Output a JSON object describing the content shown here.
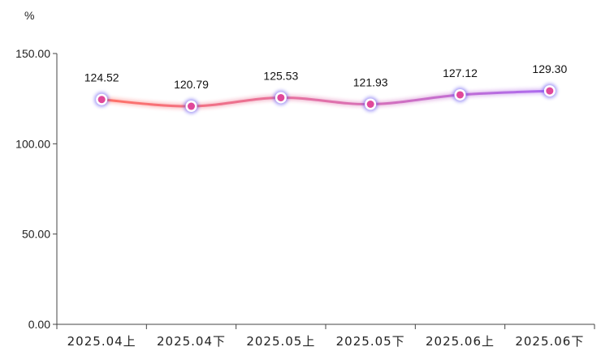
{
  "chart_data": {
    "type": "line",
    "ylabel": "%",
    "categories": [
      "2025.04上",
      "2025.04下",
      "2025.05上",
      "2025.05下",
      "2025.06上",
      "2025.06下"
    ],
    "series": [
      {
        "values": [
          124.52,
          120.79,
          125.53,
          121.93,
          127.12,
          129.3
        ]
      }
    ],
    "data_labels": [
      "124.52",
      "120.79",
      "125.53",
      "121.93",
      "127.12",
      "129.30"
    ],
    "y_tick_labels": [
      "0.00",
      "50.00",
      "100.00",
      "150.00"
    ],
    "y_ticks": [
      0,
      50,
      100,
      150
    ],
    "ylim": [
      0,
      150
    ],
    "grid": false,
    "smooth": true,
    "colors": {
      "line_start": "#ff6b5e",
      "line_mid": "#e06aa6",
      "line_end": "#a764f0",
      "marker_fill": "#e0489a",
      "marker_stroke": "#ffffff",
      "marker_halo": "#5b4cf0",
      "axis": "#444444"
    }
  }
}
